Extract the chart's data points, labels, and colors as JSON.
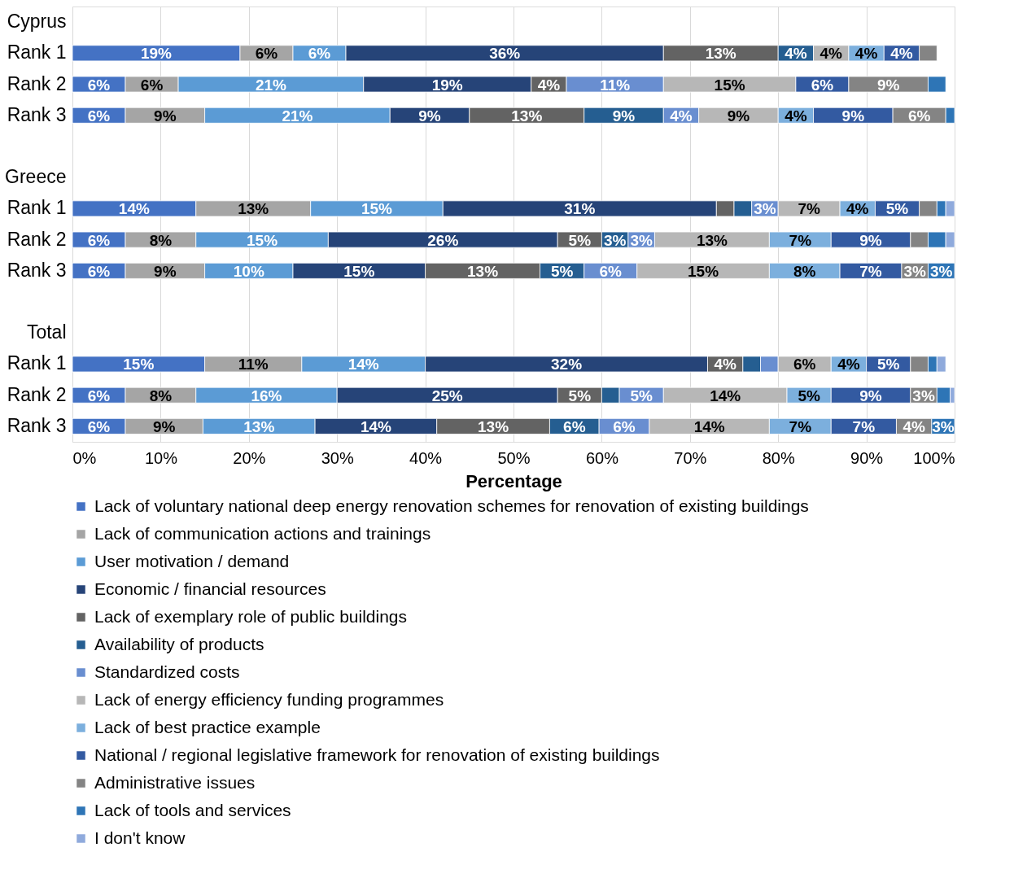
{
  "chart_data": {
    "type": "bar",
    "orientation": "horizontal",
    "stacked": true,
    "xlabel": "Percentage",
    "categories": [
      "Cyprus",
      "Rank 1",
      "Rank 2",
      "Rank 3",
      null,
      "Greece",
      "Rank 1",
      "Rank 2",
      "Rank 3",
      null,
      "Total",
      "Rank 1",
      "Rank 2",
      "Rank 3"
    ],
    "xlim": [
      0,
      100
    ],
    "xticks": [
      {
        "value": 0,
        "label": "0%"
      },
      {
        "value": 10,
        "label": "10%"
      },
      {
        "value": 20,
        "label": "20%"
      },
      {
        "value": 30,
        "label": "30%"
      },
      {
        "value": 40,
        "label": "40%"
      },
      {
        "value": 50,
        "label": "50%"
      },
      {
        "value": 60,
        "label": "60%"
      },
      {
        "value": 70,
        "label": "70%"
      },
      {
        "value": 80,
        "label": "80%"
      },
      {
        "value": 90,
        "label": "90%"
      },
      {
        "value": 100,
        "label": "100%"
      }
    ],
    "grid": "x",
    "legend": "bottom",
    "series": [
      {
        "name": "Lack of voluntary national deep energy renovation schemes for renovation of existing buildings",
        "color": "#4472c4",
        "values": [
          null,
          19,
          6,
          6,
          null,
          null,
          14,
          6,
          6,
          null,
          null,
          15,
          6,
          6
        ],
        "value_labels": [
          null,
          "19%",
          "6%",
          "6%",
          null,
          null,
          "14%",
          "6%",
          "6%",
          null,
          null,
          "15%",
          "6%",
          "6%"
        ]
      },
      {
        "name": "Lack of communication actions and trainings",
        "color": "#a5a5a5",
        "values": [
          null,
          6,
          6,
          9,
          null,
          null,
          13,
          8,
          9,
          null,
          null,
          11,
          8,
          8.8
        ],
        "value_labels": [
          null,
          "6%",
          "6%",
          "9%",
          null,
          null,
          "13%",
          "8%",
          "9%",
          null,
          null,
          "11%",
          "8%",
          "9%"
        ]
      },
      {
        "name": "User motivation / demand",
        "color": "#5b9bd5",
        "values": [
          null,
          6,
          21,
          21,
          null,
          null,
          15,
          15,
          10,
          null,
          null,
          14,
          16,
          12.7
        ],
        "value_labels": [
          null,
          "6%",
          "21%",
          "21%",
          null,
          null,
          "15%",
          "15%",
          "10%",
          null,
          null,
          "14%",
          "16%",
          "13%"
        ]
      },
      {
        "name": "Economic / financial resources",
        "color": "#264478",
        "values": [
          null,
          36,
          19,
          9,
          null,
          null,
          31,
          26,
          15,
          null,
          null,
          32,
          25,
          13.8
        ],
        "value_labels": [
          null,
          "36%",
          "19%",
          "9%",
          null,
          null,
          "31%",
          "26%",
          "15%",
          null,
          null,
          "32%",
          "25%",
          "14%"
        ]
      },
      {
        "name": "Lack of exemplary role of public buildings",
        "color": "#636363",
        "values": [
          null,
          13,
          4,
          13,
          null,
          null,
          2,
          5,
          13,
          null,
          null,
          4,
          5,
          12.8
        ],
        "value_labels": [
          null,
          "13%",
          "4%",
          "13%",
          null,
          null,
          null,
          "5%",
          "13%",
          null,
          null,
          "4%",
          "5%",
          "13%"
        ]
      },
      {
        "name": "Availability of products",
        "color": "#255e91",
        "values": [
          null,
          4,
          null,
          9,
          null,
          null,
          2,
          3,
          5,
          null,
          null,
          2,
          2,
          5.6
        ],
        "value_labels": [
          null,
          "4%",
          null,
          "9%",
          null,
          null,
          null,
          "3%",
          "5%",
          null,
          null,
          null,
          null,
          "6%"
        ]
      },
      {
        "name": "Standardized costs",
        "color": "#698ed0",
        "values": [
          null,
          null,
          11,
          4,
          null,
          null,
          3,
          3,
          6,
          null,
          null,
          2,
          5,
          5.7
        ],
        "value_labels": [
          null,
          null,
          "11%",
          "4%",
          null,
          null,
          "3%",
          "3%",
          "6%",
          null,
          null,
          null,
          "5%",
          "6%"
        ]
      },
      {
        "name": "Lack of energy efficiency funding programmes",
        "color": "#b7b7b7",
        "values": [
          null,
          4,
          15,
          9,
          null,
          null,
          7,
          13,
          15,
          null,
          null,
          6,
          14,
          13.6
        ],
        "value_labels": [
          null,
          "4%",
          "15%",
          "9%",
          null,
          null,
          "7%",
          "13%",
          "15%",
          null,
          null,
          "6%",
          "14%",
          "14%"
        ]
      },
      {
        "name": "Lack of best practice example",
        "color": "#7cafdd",
        "values": [
          null,
          4,
          null,
          4,
          null,
          null,
          4,
          7,
          8,
          null,
          null,
          4,
          5,
          7
        ],
        "value_labels": [
          null,
          "4%",
          null,
          "4%",
          null,
          null,
          "4%",
          "7%",
          "8%",
          null,
          null,
          "4%",
          "5%",
          "7%"
        ]
      },
      {
        "name": "National / regional legislative framework for renovation of existing buildings",
        "color": "#335aa1",
        "values": [
          null,
          4,
          6,
          9,
          null,
          null,
          5,
          9,
          7,
          null,
          null,
          5,
          9,
          7.4
        ],
        "value_labels": [
          null,
          "4%",
          "6%",
          "9%",
          null,
          null,
          "5%",
          "9%",
          "7%",
          null,
          null,
          "5%",
          "9%",
          "7%"
        ]
      },
      {
        "name": "Administrative issues",
        "color": "#848484",
        "values": [
          null,
          2,
          9,
          6,
          null,
          null,
          2,
          2,
          3,
          null,
          null,
          2,
          3,
          4
        ],
        "value_labels": [
          null,
          null,
          "9%",
          "6%",
          null,
          null,
          null,
          null,
          "3%",
          null,
          null,
          null,
          "3%",
          "4%"
        ]
      },
      {
        "name": "Lack of tools and services",
        "color": "#2e75b6",
        "values": [
          null,
          null,
          2,
          1,
          null,
          null,
          1,
          2,
          3,
          null,
          null,
          1,
          1.5,
          2.6
        ],
        "value_labels": [
          null,
          null,
          null,
          null,
          null,
          null,
          null,
          null,
          "3%",
          null,
          null,
          null,
          null,
          "3%"
        ]
      },
      {
        "name": "I don't know",
        "color": "#8faadc",
        "values": [
          null,
          null,
          null,
          null,
          null,
          null,
          1,
          1,
          null,
          null,
          null,
          1,
          0.5,
          null
        ],
        "value_labels": [
          null,
          null,
          null,
          null,
          null,
          null,
          null,
          null,
          null,
          null,
          null,
          null,
          null,
          null
        ]
      }
    ]
  }
}
